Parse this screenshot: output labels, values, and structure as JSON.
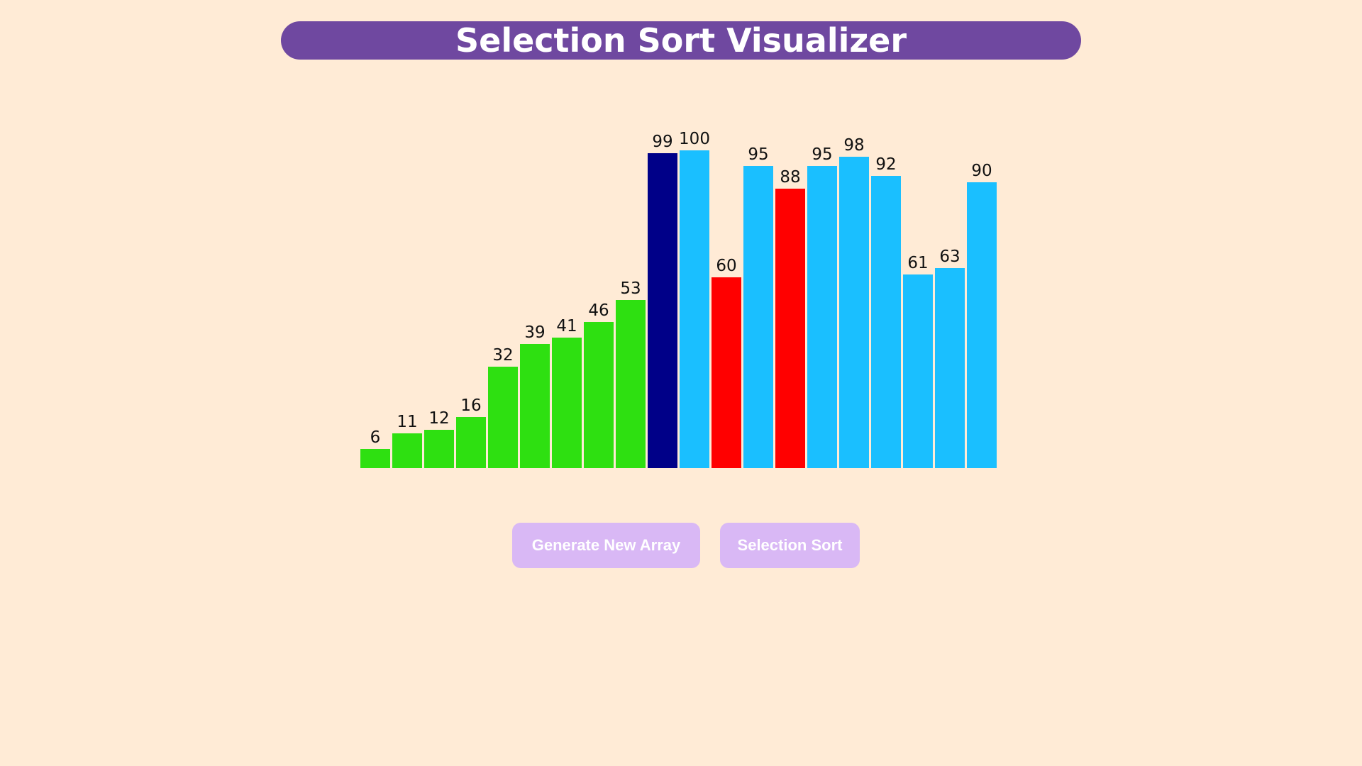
{
  "header": {
    "title": "Selection Sort Visualizer",
    "background": "#6f48a0"
  },
  "colors": {
    "sorted": "#2ee011",
    "current": "#000088",
    "compare": "#ff0000",
    "unsorted": "#1abfff"
  },
  "chart_data": {
    "type": "bar",
    "values": [
      6,
      11,
      12,
      16,
      32,
      39,
      41,
      46,
      53,
      99,
      100,
      60,
      95,
      88,
      95,
      98,
      92,
      61,
      63,
      90
    ],
    "states": [
      "sorted",
      "sorted",
      "sorted",
      "sorted",
      "sorted",
      "sorted",
      "sorted",
      "sorted",
      "sorted",
      "current",
      "unsorted",
      "compare",
      "unsorted",
      "compare",
      "unsorted",
      "unsorted",
      "unsorted",
      "unsorted",
      "unsorted",
      "unsorted"
    ],
    "ylim": [
      0,
      100
    ]
  },
  "buttons": {
    "generate_label": "Generate New Array",
    "sort_label": "Selection Sort"
  }
}
